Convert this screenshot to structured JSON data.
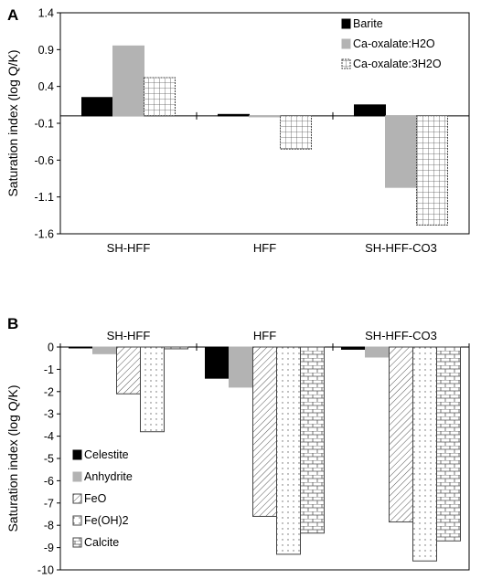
{
  "chart_data": [
    {
      "panel": "A",
      "type": "bar",
      "ylabel": "Saturation index (log Q/K)",
      "ylim": [
        -1.6,
        1.4
      ],
      "yticks": [
        "1.4",
        "0.9",
        "0.4",
        "-0.1",
        "-0.6",
        "-1.1",
        "-1.6"
      ],
      "ytick_values": [
        1.4,
        0.9,
        0.4,
        -0.1,
        -0.6,
        -1.1,
        -1.6
      ],
      "categories": [
        "SH-HFF",
        "HFF",
        "SH-HFF-CO3"
      ],
      "legend_position": "top-right",
      "series": [
        {
          "name": "Barite",
          "pattern": "solid-black",
          "values": [
            0.25,
            0.02,
            0.15
          ]
        },
        {
          "name": "Ca-oxalate:H2O",
          "pattern": "solid-gray",
          "values": [
            0.95,
            0.0,
            -0.97
          ]
        },
        {
          "name": "Ca-oxalate:3H2O",
          "pattern": "grid",
          "values": [
            0.52,
            -0.45,
            -1.48
          ]
        }
      ]
    },
    {
      "panel": "B",
      "type": "bar",
      "ylabel": "Saturation index (log Q/K)",
      "ylim": [
        -10,
        0
      ],
      "yticks": [
        "0",
        "-1",
        "-2",
        "-3",
        "-4",
        "-5",
        "-6",
        "-7",
        "-8",
        "-9",
        "-10"
      ],
      "ytick_values": [
        0,
        -1,
        -2,
        -3,
        -4,
        -5,
        -6,
        -7,
        -8,
        -9,
        -10
      ],
      "categories": [
        "SH-HFF",
        "HFF",
        "SH-HFF-CO3"
      ],
      "legend_position": "bottom-left",
      "series": [
        {
          "name": "Celestite",
          "pattern": "solid-black",
          "values": [
            0.0,
            -1.4,
            -0.1
          ]
        },
        {
          "name": "Anhydrite",
          "pattern": "solid-gray",
          "values": [
            -0.3,
            -1.8,
            -0.45
          ]
        },
        {
          "name": "FeO",
          "pattern": "hatch",
          "values": [
            -2.1,
            -7.6,
            -7.85
          ]
        },
        {
          "name": "Fe(OH)2",
          "pattern": "dots",
          "values": [
            -3.8,
            -9.3,
            -9.6
          ]
        },
        {
          "name": "Calcite",
          "pattern": "brick",
          "values": [
            -0.08,
            -8.35,
            -8.7
          ]
        }
      ]
    }
  ]
}
